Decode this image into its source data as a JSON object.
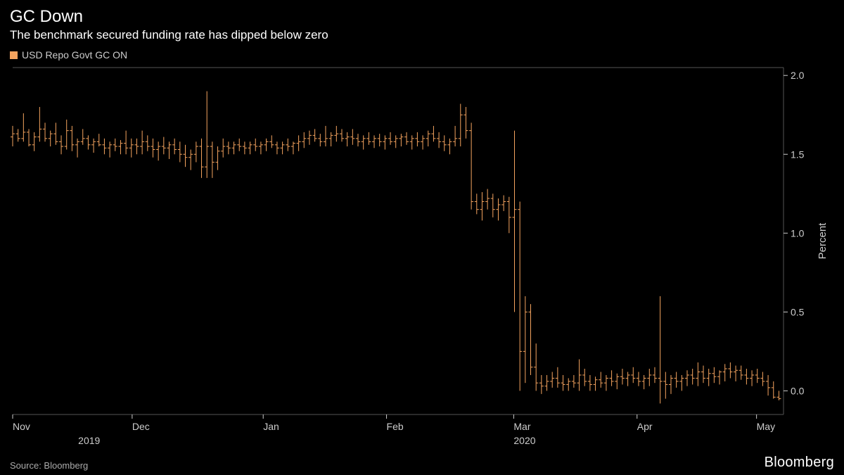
{
  "header": {
    "title": "GC Down",
    "subtitle": "The benchmark secured funding rate has dipped below zero"
  },
  "legend": {
    "swatch_color": "#f5a45f",
    "label": "USD Repo Govt GC ON"
  },
  "chart": {
    "type": "ohlc",
    "line_color": "#f5a45f",
    "line_width": 1.0,
    "background": "#000000",
    "border_color": "#555555",
    "ylim": [
      -0.15,
      2.05
    ],
    "yticks": [
      0.0,
      0.5,
      1.0,
      1.5,
      2.0
    ],
    "y_axis_title": "Percent",
    "x_axis": {
      "months": [
        "Nov",
        "Dec",
        "Jan",
        "Feb",
        "Mar",
        "Apr",
        "May"
      ],
      "month_positions": [
        0.0,
        0.155,
        0.325,
        0.485,
        0.65,
        0.81,
        0.965
      ],
      "years": [
        "2019",
        "2020"
      ],
      "year_positions": [
        0.085,
        0.65
      ]
    },
    "data": [
      {
        "x": 0.0,
        "o": 1.61,
        "h": 1.68,
        "l": 1.55,
        "c": 1.63
      },
      {
        "x": 0.007,
        "o": 1.63,
        "h": 1.66,
        "l": 1.58,
        "c": 1.6
      },
      {
        "x": 0.014,
        "o": 1.6,
        "h": 1.76,
        "l": 1.58,
        "c": 1.64
      },
      {
        "x": 0.021,
        "o": 1.64,
        "h": 1.66,
        "l": 1.55,
        "c": 1.56
      },
      {
        "x": 0.028,
        "o": 1.56,
        "h": 1.64,
        "l": 1.52,
        "c": 1.61
      },
      {
        "x": 0.035,
        "o": 1.61,
        "h": 1.8,
        "l": 1.58,
        "c": 1.66
      },
      {
        "x": 0.042,
        "o": 1.66,
        "h": 1.7,
        "l": 1.58,
        "c": 1.6
      },
      {
        "x": 0.049,
        "o": 1.6,
        "h": 1.65,
        "l": 1.55,
        "c": 1.63
      },
      {
        "x": 0.056,
        "o": 1.63,
        "h": 1.7,
        "l": 1.56,
        "c": 1.58
      },
      {
        "x": 0.063,
        "o": 1.58,
        "h": 1.62,
        "l": 1.5,
        "c": 1.55
      },
      {
        "x": 0.07,
        "o": 1.55,
        "h": 1.72,
        "l": 1.53,
        "c": 1.65
      },
      {
        "x": 0.077,
        "o": 1.65,
        "h": 1.68,
        "l": 1.52,
        "c": 1.56
      },
      {
        "x": 0.084,
        "o": 1.56,
        "h": 1.6,
        "l": 1.48,
        "c": 1.58
      },
      {
        "x": 0.091,
        "o": 1.58,
        "h": 1.66,
        "l": 1.56,
        "c": 1.6
      },
      {
        "x": 0.098,
        "o": 1.6,
        "h": 1.62,
        "l": 1.53,
        "c": 1.56
      },
      {
        "x": 0.105,
        "o": 1.56,
        "h": 1.6,
        "l": 1.51,
        "c": 1.58
      },
      {
        "x": 0.112,
        "o": 1.58,
        "h": 1.63,
        "l": 1.55,
        "c": 1.56
      },
      {
        "x": 0.119,
        "o": 1.56,
        "h": 1.6,
        "l": 1.5,
        "c": 1.54
      },
      {
        "x": 0.126,
        "o": 1.54,
        "h": 1.58,
        "l": 1.48,
        "c": 1.56
      },
      {
        "x": 0.133,
        "o": 1.56,
        "h": 1.6,
        "l": 1.52,
        "c": 1.55
      },
      {
        "x": 0.14,
        "o": 1.55,
        "h": 1.59,
        "l": 1.5,
        "c": 1.57
      },
      {
        "x": 0.147,
        "o": 1.57,
        "h": 1.65,
        "l": 1.5,
        "c": 1.54
      },
      {
        "x": 0.154,
        "o": 1.54,
        "h": 1.6,
        "l": 1.48,
        "c": 1.56
      },
      {
        "x": 0.161,
        "o": 1.56,
        "h": 1.6,
        "l": 1.5,
        "c": 1.55
      },
      {
        "x": 0.168,
        "o": 1.55,
        "h": 1.65,
        "l": 1.5,
        "c": 1.58
      },
      {
        "x": 0.175,
        "o": 1.58,
        "h": 1.62,
        "l": 1.52,
        "c": 1.55
      },
      {
        "x": 0.182,
        "o": 1.55,
        "h": 1.6,
        "l": 1.48,
        "c": 1.53
      },
      {
        "x": 0.189,
        "o": 1.53,
        "h": 1.58,
        "l": 1.46,
        "c": 1.55
      },
      {
        "x": 0.196,
        "o": 1.55,
        "h": 1.61,
        "l": 1.5,
        "c": 1.54
      },
      {
        "x": 0.203,
        "o": 1.54,
        "h": 1.58,
        "l": 1.47,
        "c": 1.56
      },
      {
        "x": 0.21,
        "o": 1.56,
        "h": 1.6,
        "l": 1.5,
        "c": 1.53
      },
      {
        "x": 0.217,
        "o": 1.53,
        "h": 1.58,
        "l": 1.45,
        "c": 1.5
      },
      {
        "x": 0.224,
        "o": 1.5,
        "h": 1.56,
        "l": 1.42,
        "c": 1.48
      },
      {
        "x": 0.231,
        "o": 1.48,
        "h": 1.53,
        "l": 1.4,
        "c": 1.5
      },
      {
        "x": 0.238,
        "o": 1.5,
        "h": 1.58,
        "l": 1.45,
        "c": 1.55
      },
      {
        "x": 0.245,
        "o": 1.55,
        "h": 1.6,
        "l": 1.35,
        "c": 1.42
      },
      {
        "x": 0.252,
        "o": 1.42,
        "h": 1.9,
        "l": 1.35,
        "c": 1.55
      },
      {
        "x": 0.259,
        "o": 1.55,
        "h": 1.58,
        "l": 1.35,
        "c": 1.45
      },
      {
        "x": 0.266,
        "o": 1.45,
        "h": 1.55,
        "l": 1.4,
        "c": 1.52
      },
      {
        "x": 0.273,
        "o": 1.52,
        "h": 1.6,
        "l": 1.48,
        "c": 1.55
      },
      {
        "x": 0.28,
        "o": 1.55,
        "h": 1.58,
        "l": 1.5,
        "c": 1.54
      },
      {
        "x": 0.287,
        "o": 1.54,
        "h": 1.58,
        "l": 1.5,
        "c": 1.56
      },
      {
        "x": 0.294,
        "o": 1.56,
        "h": 1.6,
        "l": 1.52,
        "c": 1.55
      },
      {
        "x": 0.301,
        "o": 1.55,
        "h": 1.58,
        "l": 1.5,
        "c": 1.54
      },
      {
        "x": 0.308,
        "o": 1.54,
        "h": 1.58,
        "l": 1.5,
        "c": 1.56
      },
      {
        "x": 0.315,
        "o": 1.56,
        "h": 1.6,
        "l": 1.52,
        "c": 1.55
      },
      {
        "x": 0.322,
        "o": 1.55,
        "h": 1.58,
        "l": 1.5,
        "c": 1.56
      },
      {
        "x": 0.329,
        "o": 1.56,
        "h": 1.6,
        "l": 1.52,
        "c": 1.58
      },
      {
        "x": 0.336,
        "o": 1.58,
        "h": 1.62,
        "l": 1.54,
        "c": 1.56
      },
      {
        "x": 0.343,
        "o": 1.56,
        "h": 1.58,
        "l": 1.5,
        "c": 1.54
      },
      {
        "x": 0.35,
        "o": 1.54,
        "h": 1.58,
        "l": 1.5,
        "c": 1.56
      },
      {
        "x": 0.357,
        "o": 1.56,
        "h": 1.6,
        "l": 1.52,
        "c": 1.55
      },
      {
        "x": 0.364,
        "o": 1.55,
        "h": 1.58,
        "l": 1.5,
        "c": 1.57
      },
      {
        "x": 0.371,
        "o": 1.57,
        "h": 1.62,
        "l": 1.52,
        "c": 1.58
      },
      {
        "x": 0.378,
        "o": 1.58,
        "h": 1.64,
        "l": 1.54,
        "c": 1.6
      },
      {
        "x": 0.385,
        "o": 1.6,
        "h": 1.65,
        "l": 1.56,
        "c": 1.62
      },
      {
        "x": 0.392,
        "o": 1.62,
        "h": 1.66,
        "l": 1.58,
        "c": 1.6
      },
      {
        "x": 0.399,
        "o": 1.6,
        "h": 1.63,
        "l": 1.55,
        "c": 1.58
      },
      {
        "x": 0.406,
        "o": 1.58,
        "h": 1.68,
        "l": 1.55,
        "c": 1.6
      },
      {
        "x": 0.413,
        "o": 1.6,
        "h": 1.64,
        "l": 1.55,
        "c": 1.62
      },
      {
        "x": 0.42,
        "o": 1.62,
        "h": 1.68,
        "l": 1.58,
        "c": 1.63
      },
      {
        "x": 0.427,
        "o": 1.63,
        "h": 1.66,
        "l": 1.58,
        "c": 1.6
      },
      {
        "x": 0.434,
        "o": 1.6,
        "h": 1.64,
        "l": 1.55,
        "c": 1.61
      },
      {
        "x": 0.441,
        "o": 1.61,
        "h": 1.66,
        "l": 1.56,
        "c": 1.6
      },
      {
        "x": 0.448,
        "o": 1.6,
        "h": 1.63,
        "l": 1.55,
        "c": 1.58
      },
      {
        "x": 0.455,
        "o": 1.58,
        "h": 1.62,
        "l": 1.53,
        "c": 1.6
      },
      {
        "x": 0.462,
        "o": 1.6,
        "h": 1.64,
        "l": 1.56,
        "c": 1.58
      },
      {
        "x": 0.469,
        "o": 1.58,
        "h": 1.62,
        "l": 1.54,
        "c": 1.6
      },
      {
        "x": 0.476,
        "o": 1.6,
        "h": 1.63,
        "l": 1.55,
        "c": 1.58
      },
      {
        "x": 0.483,
        "o": 1.58,
        "h": 1.62,
        "l": 1.53,
        "c": 1.6
      },
      {
        "x": 0.49,
        "o": 1.6,
        "h": 1.64,
        "l": 1.56,
        "c": 1.58
      },
      {
        "x": 0.497,
        "o": 1.58,
        "h": 1.62,
        "l": 1.54,
        "c": 1.6
      },
      {
        "x": 0.504,
        "o": 1.6,
        "h": 1.63,
        "l": 1.55,
        "c": 1.61
      },
      {
        "x": 0.511,
        "o": 1.61,
        "h": 1.64,
        "l": 1.56,
        "c": 1.58
      },
      {
        "x": 0.518,
        "o": 1.58,
        "h": 1.62,
        "l": 1.53,
        "c": 1.6
      },
      {
        "x": 0.525,
        "o": 1.6,
        "h": 1.64,
        "l": 1.55,
        "c": 1.58
      },
      {
        "x": 0.532,
        "o": 1.58,
        "h": 1.62,
        "l": 1.53,
        "c": 1.6
      },
      {
        "x": 0.539,
        "o": 1.6,
        "h": 1.65,
        "l": 1.55,
        "c": 1.63
      },
      {
        "x": 0.546,
        "o": 1.63,
        "h": 1.68,
        "l": 1.58,
        "c": 1.6
      },
      {
        "x": 0.553,
        "o": 1.6,
        "h": 1.64,
        "l": 1.54,
        "c": 1.58
      },
      {
        "x": 0.56,
        "o": 1.58,
        "h": 1.62,
        "l": 1.52,
        "c": 1.56
      },
      {
        "x": 0.567,
        "o": 1.56,
        "h": 1.6,
        "l": 1.5,
        "c": 1.58
      },
      {
        "x": 0.574,
        "o": 1.58,
        "h": 1.68,
        "l": 1.55,
        "c": 1.6
      },
      {
        "x": 0.581,
        "o": 1.6,
        "h": 1.82,
        "l": 1.55,
        "c": 1.75
      },
      {
        "x": 0.588,
        "o": 1.75,
        "h": 1.8,
        "l": 1.6,
        "c": 1.65
      },
      {
        "x": 0.595,
        "o": 1.65,
        "h": 1.7,
        "l": 1.15,
        "c": 1.2
      },
      {
        "x": 0.602,
        "o": 1.2,
        "h": 1.25,
        "l": 1.12,
        "c": 1.15
      },
      {
        "x": 0.609,
        "o": 1.15,
        "h": 1.26,
        "l": 1.08,
        "c": 1.2
      },
      {
        "x": 0.616,
        "o": 1.2,
        "h": 1.28,
        "l": 1.15,
        "c": 1.22
      },
      {
        "x": 0.623,
        "o": 1.22,
        "h": 1.25,
        "l": 1.1,
        "c": 1.15
      },
      {
        "x": 0.63,
        "o": 1.15,
        "h": 1.22,
        "l": 1.08,
        "c": 1.18
      },
      {
        "x": 0.637,
        "o": 1.18,
        "h": 1.24,
        "l": 1.14,
        "c": 1.2
      },
      {
        "x": 0.644,
        "o": 1.2,
        "h": 1.23,
        "l": 1.0,
        "c": 1.1
      },
      {
        "x": 0.651,
        "o": 1.1,
        "h": 1.65,
        "l": 0.5,
        "c": 1.15
      },
      {
        "x": 0.658,
        "o": 1.15,
        "h": 1.2,
        "l": 0.0,
        "c": 0.25
      },
      {
        "x": 0.665,
        "o": 0.25,
        "h": 0.6,
        "l": 0.05,
        "c": 0.5
      },
      {
        "x": 0.672,
        "o": 0.5,
        "h": 0.55,
        "l": 0.1,
        "c": 0.15
      },
      {
        "x": 0.679,
        "o": 0.15,
        "h": 0.3,
        "l": 0.0,
        "c": 0.05
      },
      {
        "x": 0.686,
        "o": 0.05,
        "h": 0.1,
        "l": -0.02,
        "c": 0.03
      },
      {
        "x": 0.693,
        "o": 0.03,
        "h": 0.1,
        "l": 0.0,
        "c": 0.06
      },
      {
        "x": 0.7,
        "o": 0.06,
        "h": 0.12,
        "l": 0.02,
        "c": 0.08
      },
      {
        "x": 0.707,
        "o": 0.08,
        "h": 0.15,
        "l": 0.02,
        "c": 0.05
      },
      {
        "x": 0.714,
        "o": 0.05,
        "h": 0.1,
        "l": 0.0,
        "c": 0.04
      },
      {
        "x": 0.721,
        "o": 0.04,
        "h": 0.08,
        "l": 0.0,
        "c": 0.06
      },
      {
        "x": 0.728,
        "o": 0.06,
        "h": 0.1,
        "l": 0.02,
        "c": 0.05
      },
      {
        "x": 0.735,
        "o": 0.05,
        "h": 0.2,
        "l": 0.0,
        "c": 0.1
      },
      {
        "x": 0.742,
        "o": 0.1,
        "h": 0.14,
        "l": 0.03,
        "c": 0.06
      },
      {
        "x": 0.749,
        "o": 0.06,
        "h": 0.1,
        "l": 0.0,
        "c": 0.04
      },
      {
        "x": 0.756,
        "o": 0.04,
        "h": 0.09,
        "l": 0.0,
        "c": 0.07
      },
      {
        "x": 0.763,
        "o": 0.07,
        "h": 0.12,
        "l": 0.02,
        "c": 0.05
      },
      {
        "x": 0.77,
        "o": 0.05,
        "h": 0.1,
        "l": 0.0,
        "c": 0.08
      },
      {
        "x": 0.777,
        "o": 0.08,
        "h": 0.13,
        "l": 0.03,
        "c": 0.06
      },
      {
        "x": 0.784,
        "o": 0.06,
        "h": 0.11,
        "l": 0.01,
        "c": 0.09
      },
      {
        "x": 0.791,
        "o": 0.09,
        "h": 0.14,
        "l": 0.04,
        "c": 0.08
      },
      {
        "x": 0.798,
        "o": 0.08,
        "h": 0.12,
        "l": 0.03,
        "c": 0.1
      },
      {
        "x": 0.805,
        "o": 0.1,
        "h": 0.15,
        "l": 0.05,
        "c": 0.08
      },
      {
        "x": 0.812,
        "o": 0.08,
        "h": 0.12,
        "l": 0.03,
        "c": 0.06
      },
      {
        "x": 0.819,
        "o": 0.06,
        "h": 0.1,
        "l": 0.01,
        "c": 0.08
      },
      {
        "x": 0.826,
        "o": 0.08,
        "h": 0.14,
        "l": 0.03,
        "c": 0.1
      },
      {
        "x": 0.833,
        "o": 0.1,
        "h": 0.15,
        "l": 0.05,
        "c": 0.08
      },
      {
        "x": 0.84,
        "o": 0.08,
        "h": 0.6,
        "l": -0.08,
        "c": 0.06
      },
      {
        "x": 0.847,
        "o": 0.06,
        "h": 0.12,
        "l": -0.05,
        "c": 0.04
      },
      {
        "x": 0.854,
        "o": 0.04,
        "h": 0.1,
        "l": -0.02,
        "c": 0.08
      },
      {
        "x": 0.861,
        "o": 0.08,
        "h": 0.12,
        "l": 0.02,
        "c": 0.06
      },
      {
        "x": 0.868,
        "o": 0.06,
        "h": 0.1,
        "l": 0.0,
        "c": 0.08
      },
      {
        "x": 0.875,
        "o": 0.08,
        "h": 0.13,
        "l": 0.03,
        "c": 0.1
      },
      {
        "x": 0.882,
        "o": 0.1,
        "h": 0.14,
        "l": 0.04,
        "c": 0.08
      },
      {
        "x": 0.889,
        "o": 0.08,
        "h": 0.18,
        "l": 0.03,
        "c": 0.12
      },
      {
        "x": 0.896,
        "o": 0.12,
        "h": 0.16,
        "l": 0.05,
        "c": 0.08
      },
      {
        "x": 0.903,
        "o": 0.08,
        "h": 0.14,
        "l": 0.03,
        "c": 0.11
      },
      {
        "x": 0.91,
        "o": 0.11,
        "h": 0.15,
        "l": 0.05,
        "c": 0.09
      },
      {
        "x": 0.917,
        "o": 0.09,
        "h": 0.13,
        "l": 0.04,
        "c": 0.12
      },
      {
        "x": 0.924,
        "o": 0.12,
        "h": 0.17,
        "l": 0.06,
        "c": 0.14
      },
      {
        "x": 0.931,
        "o": 0.14,
        "h": 0.18,
        "l": 0.08,
        "c": 0.12
      },
      {
        "x": 0.938,
        "o": 0.12,
        "h": 0.16,
        "l": 0.06,
        "c": 0.13
      },
      {
        "x": 0.945,
        "o": 0.13,
        "h": 0.16,
        "l": 0.07,
        "c": 0.1
      },
      {
        "x": 0.952,
        "o": 0.1,
        "h": 0.14,
        "l": 0.04,
        "c": 0.08
      },
      {
        "x": 0.959,
        "o": 0.08,
        "h": 0.13,
        "l": 0.03,
        "c": 0.1
      },
      {
        "x": 0.966,
        "o": 0.1,
        "h": 0.14,
        "l": 0.05,
        "c": 0.08
      },
      {
        "x": 0.973,
        "o": 0.08,
        "h": 0.12,
        "l": 0.03,
        "c": 0.06
      },
      {
        "x": 0.98,
        "o": 0.06,
        "h": 0.1,
        "l": -0.03,
        "c": 0.02
      },
      {
        "x": 0.987,
        "o": 0.02,
        "h": 0.06,
        "l": -0.05,
        "c": -0.04
      },
      {
        "x": 0.994,
        "o": -0.04,
        "h": 0.0,
        "l": -0.06,
        "c": -0.05
      }
    ]
  },
  "footer": {
    "source": "Source: Bloomberg",
    "brand": "Bloomberg"
  }
}
